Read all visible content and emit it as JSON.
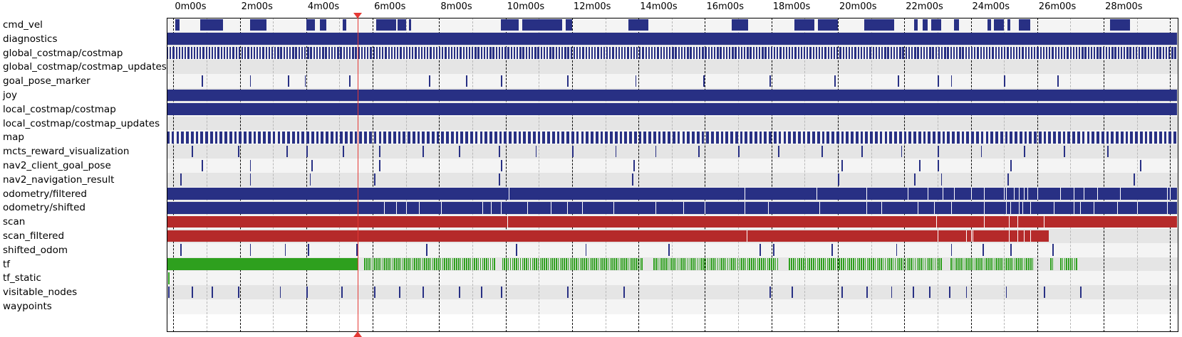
{
  "timeline": {
    "start_minutes": -0.2,
    "minutes_visible": 30.45,
    "tick_labels": [
      "0m00s",
      "2m00s",
      "4m00s",
      "6m00s",
      "8m00s",
      "10m00s",
      "12m00s",
      "14m00s",
      "16m00s",
      "18m00s",
      "20m00s",
      "22m00s",
      "24m00s",
      "26m00s",
      "28m00s"
    ],
    "cursor_minutes": 5.55,
    "colors": {
      "navy": "#283084",
      "red": "#b52a2a",
      "green": "#2ea01e",
      "cursor": "#e53935"
    }
  },
  "topics": [
    {
      "name": "cmd_vel",
      "style": "navy",
      "segments": [
        [
          0.05,
          0.18
        ],
        [
          0.8,
          1.5
        ],
        [
          2.3,
          2.8
        ],
        [
          4.0,
          4.25
        ],
        [
          4.4,
          4.6
        ],
        [
          5.1,
          5.2
        ],
        [
          6.1,
          6.7
        ],
        [
          6.75,
          7.0
        ],
        [
          7.1,
          7.15
        ],
        [
          9.85,
          10.4
        ],
        [
          10.5,
          11.7
        ],
        [
          11.8,
          12.0
        ],
        [
          13.7,
          14.3
        ],
        [
          16.8,
          17.3
        ],
        [
          18.7,
          19.3
        ],
        [
          19.4,
          20.0
        ],
        [
          20.8,
          21.7
        ],
        [
          22.3,
          22.4
        ],
        [
          22.55,
          22.7
        ],
        [
          22.8,
          23.1
        ],
        [
          23.5,
          23.65
        ],
        [
          24.5,
          24.6
        ],
        [
          24.7,
          25.0
        ],
        [
          25.1,
          25.2
        ],
        [
          25.45,
          25.8
        ],
        [
          28.2,
          28.8
        ]
      ]
    },
    {
      "name": "diagnostics",
      "style": "navy",
      "segments": [
        [
          -0.2,
          30.25
        ]
      ]
    },
    {
      "name": "global_costmap/costmap",
      "style": "navy",
      "dense": true,
      "range": [
        -0.2,
        30.25
      ],
      "step": 0.09
    },
    {
      "name": "global_costmap/costmap_updates",
      "style": "navy",
      "segments": []
    },
    {
      "name": "goal_pose_marker",
      "style": "navy",
      "ticks": [
        0.85,
        2.3,
        3.45,
        3.95,
        5.3,
        7.7,
        8.8,
        9.85,
        11.85,
        13.9,
        15.95,
        17.95,
        19.9,
        21.8,
        23.0,
        23.4,
        25.0,
        26.6
      ]
    },
    {
      "name": "joy",
      "style": "navy",
      "segments": [
        [
          -0.2,
          30.25
        ]
      ]
    },
    {
      "name": "local_costmap/costmap",
      "style": "navy",
      "segments": [
        [
          -0.2,
          30.25
        ]
      ]
    },
    {
      "name": "local_costmap/costmap_updates",
      "style": "navy",
      "segments": []
    },
    {
      "name": "map",
      "style": "navy",
      "dense": true,
      "range": [
        -0.2,
        30.25
      ],
      "step": 0.145
    },
    {
      "name": "mcts_reward_visualization",
      "style": "navy",
      "ticks": [
        0.55,
        1.95,
        3.4,
        4.0,
        5.1,
        6.2,
        7.5,
        8.6,
        9.8,
        10.9,
        12.0,
        13.3,
        14.5,
        15.8,
        17.0,
        18.2,
        19.5,
        20.7,
        21.9,
        23.0,
        24.3,
        25.6,
        26.8,
        28.1
      ]
    },
    {
      "name": "nav2_client_goal_pose",
      "style": "navy",
      "ticks": [
        0.85,
        2.3,
        4.15,
        6.2,
        9.85,
        13.85,
        20.1,
        22.45,
        23.0,
        25.2,
        29.1
      ]
    },
    {
      "name": "nav2_navigation_result",
      "style": "navy",
      "ticks": [
        0.2,
        2.3,
        4.1,
        6.05,
        9.8,
        13.8,
        20.0,
        22.3,
        23.1,
        25.1,
        28.9
      ]
    },
    {
      "name": "odometry/filtered",
      "style": "navy",
      "segments": [
        [
          -0.2,
          30.25
        ]
      ],
      "gaps": [
        10.1,
        17.2,
        19.35,
        20.85,
        22.1,
        22.7,
        23.15,
        23.5,
        24.0,
        24.4,
        25.0,
        25.05,
        25.3,
        25.45,
        25.6,
        25.7,
        26.0,
        26.7,
        27.1,
        27.4,
        27.8,
        28.5,
        29.9,
        30.0
      ]
    },
    {
      "name": "odometry/shifted",
      "style": "navy",
      "segments": [
        [
          -0.2,
          30.25
        ]
      ],
      "gaps": [
        6.35,
        6.7,
        7.0,
        7.4,
        8.05,
        9.3,
        9.55,
        9.85,
        10.65,
        11.35,
        11.85,
        12.3,
        13.25,
        14.5,
        15.35,
        16.0,
        17.2,
        17.9,
        19.45,
        20.85,
        21.3,
        22.4,
        22.9,
        23.4,
        24.4,
        25.05,
        25.2,
        25.45,
        25.55,
        25.8,
        26.5,
        27.1,
        27.3,
        27.7,
        28.4,
        29.0,
        29.9
      ]
    },
    {
      "name": "scan",
      "style": "red",
      "segments": [
        [
          -0.2,
          30.25
        ]
      ],
      "gaps": [
        10.05,
        22.95,
        24.4,
        25.15,
        25.4,
        26.2
      ]
    },
    {
      "name": "scan_filtered",
      "style": "red",
      "segments": [
        [
          -0.2,
          26.35
        ]
      ],
      "gaps": [
        17.25,
        23.0,
        23.85,
        24.0,
        24.05,
        25.15,
        25.4,
        25.6,
        25.8
      ]
    },
    {
      "name": "shifted_odom",
      "style": "navy",
      "ticks": [
        0.2,
        2.3,
        3.35,
        4.05,
        5.5,
        7.6,
        10.3,
        12.4,
        14.9,
        17.65,
        18.05,
        19.8,
        21.75,
        23.4,
        24.35,
        25.2,
        26.45
      ]
    },
    {
      "name": "tf",
      "style": "green",
      "segments": [
        [
          -0.2,
          5.55
        ]
      ],
      "dense": true,
      "range": [
        5.75,
        27.2
      ],
      "step": 0.06,
      "gaps": [
        [
          9.65,
          9.85
        ],
        [
          14.1,
          14.4
        ],
        [
          18.2,
          18.5
        ],
        [
          23.1,
          23.35
        ],
        [
          25.9,
          26.35
        ],
        [
          26.45,
          26.65
        ]
      ]
    },
    {
      "name": "tf_static",
      "style": "green",
      "ticks": [
        -0.15
      ]
    },
    {
      "name": "visitable_nodes",
      "style": "navy",
      "ticks": [
        -0.15,
        0.55,
        1.15,
        1.95,
        3.2,
        4.0,
        5.05,
        6.05,
        6.8,
        7.5,
        8.6,
        9.25,
        9.85,
        11.85,
        13.55,
        17.95,
        18.6,
        20.1,
        20.85,
        21.6,
        22.25,
        22.75,
        23.35,
        23.85,
        25.05,
        26.2,
        27.3
      ]
    },
    {
      "name": "waypoints",
      "style": "navy",
      "segments": []
    }
  ]
}
